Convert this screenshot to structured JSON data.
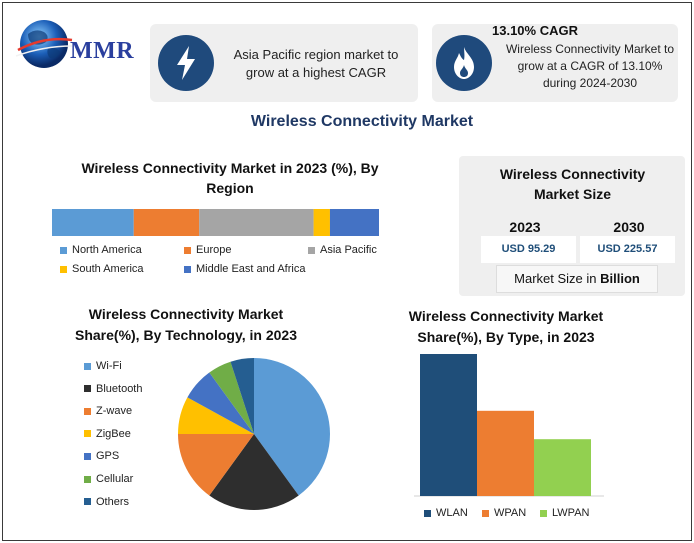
{
  "logo": {
    "text": "MMR"
  },
  "info_card_1": {
    "icon": "lightning-icon",
    "text": "Asia Pacific region market to grow at a highest CAGR"
  },
  "info_card_2": {
    "icon": "flame-icon",
    "title": "13.10% CAGR",
    "text": "Wireless Connectivity Market to grow at a CAGR of 13.10% during 2024-2030"
  },
  "main_title": "Wireless Connectivity Market",
  "colors": {
    "accent": "#1f4a7c",
    "north_america": "#5b9bd5",
    "europe": "#ed7d31",
    "asia_pacific": "#a5a5a5",
    "south_america": "#ffc000",
    "mea": "#4472c4",
    "wifi": "#5b9bd5",
    "bluetooth": "#2e2e2e",
    "zwave": "#ed7d31",
    "zigbee": "#ffc000",
    "gps": "#4472c4",
    "cellular": "#70ad47",
    "others": "#255e91",
    "wlan": "#1f4e79",
    "wpan": "#ed7d31",
    "lwpan": "#92d050"
  },
  "market_size": {
    "title": "Wireless Connectivity Market Size",
    "year_1": "2023",
    "year_2": "2030",
    "value_1": "USD 95.29",
    "value_2": "USD 225.57",
    "footer_prefix": "Market Size in ",
    "footer_unit": "Billion"
  },
  "chart_data": [
    {
      "type": "bar",
      "orientation": "horizontal-stacked",
      "title": "Wireless Connectivity Market in 2023 (%), By Region",
      "series": [
        {
          "name": "North America",
          "values": [
            25
          ]
        },
        {
          "name": "Europe",
          "values": [
            20
          ]
        },
        {
          "name": "Asia Pacific",
          "values": [
            35
          ]
        },
        {
          "name": "South America",
          "values": [
            5
          ]
        },
        {
          "name": "Middle East and Africa",
          "values": [
            15
          ]
        }
      ],
      "legend_position": "bottom"
    },
    {
      "type": "pie",
      "title": "Wireless Connectivity Market Share(%), By Technology, in 2023",
      "labels": [
        "Wi-Fi",
        "Bluetooth",
        "Z-wave",
        "ZigBee",
        "GPS",
        "Cellular",
        "Others"
      ],
      "values": [
        40,
        20,
        15,
        8,
        7,
        5,
        5
      ],
      "legend_position": "left"
    },
    {
      "type": "bar",
      "title": "Wireless Connectivity Market Share(%), By Type, in 2023",
      "categories": [
        "WLAN",
        "WPAN",
        "LWPAN"
      ],
      "values": [
        50,
        30,
        20
      ],
      "ylim": [
        0,
        50
      ],
      "legend_position": "bottom"
    }
  ]
}
